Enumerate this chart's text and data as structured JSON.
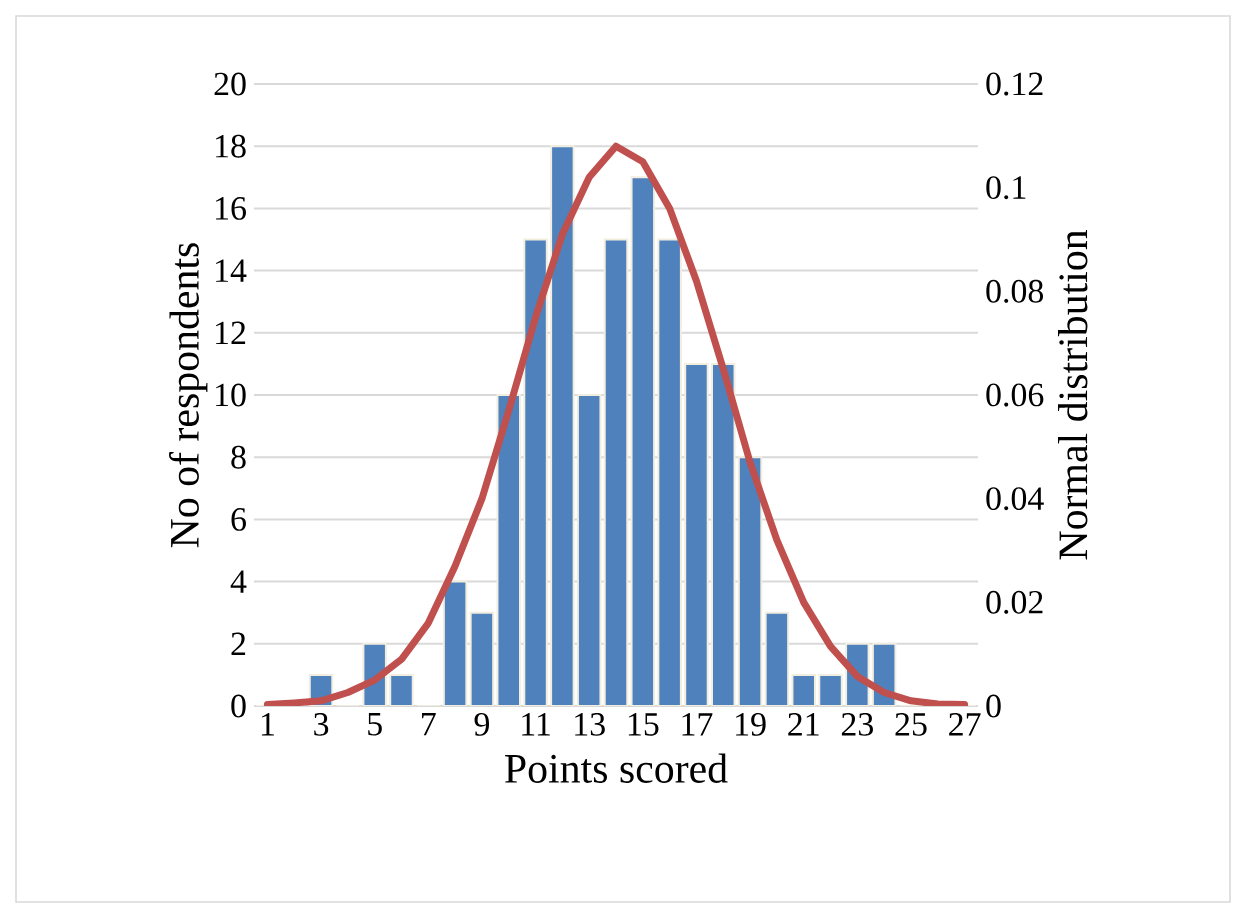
{
  "chart_data": {
    "type": "bar",
    "categories": [
      "1",
      null,
      "3",
      null,
      "5",
      null,
      "7",
      null,
      "9",
      null,
      "11",
      null,
      "13",
      null,
      "15",
      null,
      "17",
      null,
      "19",
      null,
      "21",
      null,
      "23",
      null,
      "25",
      null,
      "27"
    ],
    "series": [
      {
        "color": "#4f81bd",
        "values": [
          0,
          0,
          1,
          0,
          2,
          1,
          0,
          4,
          3,
          10,
          15,
          18,
          10,
          15,
          17,
          15,
          11,
          11,
          8,
          3,
          1,
          1,
          2,
          2,
          0,
          0,
          0
        ]
      },
      {
        "type": "line",
        "axis": "y2",
        "color": "#c0504d",
        "values": [
          0.0003,
          0.0006,
          0.001,
          0.0026,
          0.005,
          0.009,
          0.016,
          0.027,
          0.04,
          0.057,
          0.075,
          0.091,
          0.102,
          0.108,
          0.105,
          0.096,
          0.082,
          0.065,
          0.047,
          0.032,
          0.02,
          0.0115,
          0.0057,
          0.0026,
          0.001,
          0.0004,
          0.0003
        ]
      }
    ],
    "xlabel": "Points scored",
    "ylabel": "No of respondents",
    "y2label": "Normal distribution",
    "ylim": [
      0,
      20
    ],
    "yticks": [
      0,
      2,
      4,
      6,
      8,
      10,
      12,
      14,
      16,
      18,
      20
    ],
    "y2lim": [
      0,
      0.12
    ],
    "y2ticks": [
      0,
      0.02,
      0.04,
      0.06,
      0.08,
      0.1,
      0.12
    ],
    "grid": "y"
  }
}
